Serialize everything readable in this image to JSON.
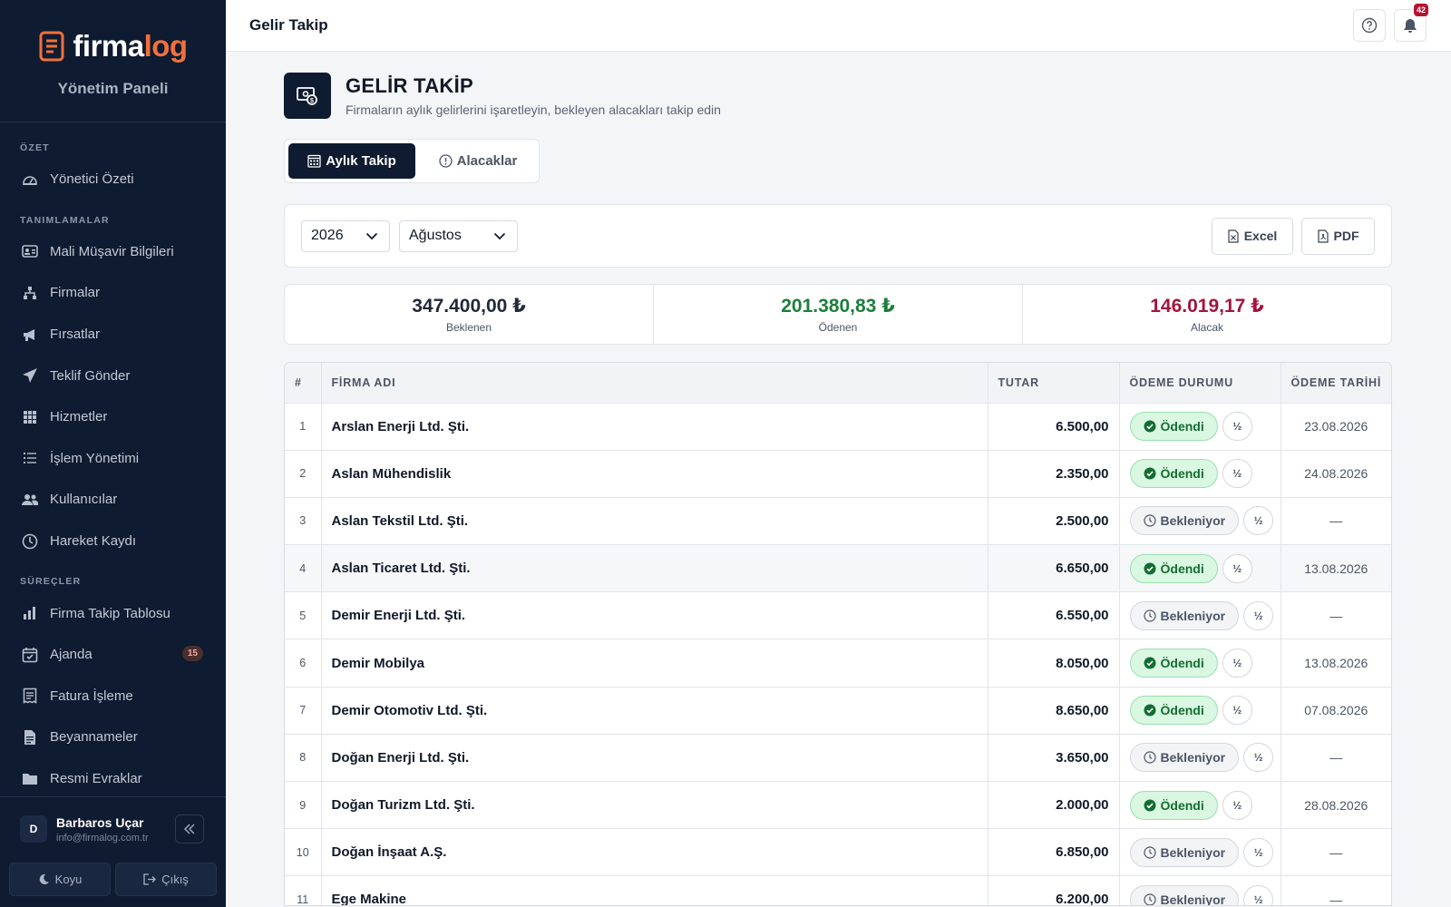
{
  "sidebar": {
    "brand": {
      "part1": "firma",
      "part2": "log",
      "subtitle": "Yönetim Paneli"
    },
    "sections": [
      {
        "title": "ÖZET",
        "items": [
          {
            "label": "Yönetici Özeti",
            "icon": "gauge-icon"
          }
        ]
      },
      {
        "title": "TANIMLAMALAR",
        "items": [
          {
            "label": "Mali Müşavir Bilgileri",
            "icon": "id-card-icon"
          },
          {
            "label": "Firmalar",
            "icon": "sitemap-icon"
          },
          {
            "label": "Fırsatlar",
            "icon": "megaphone-icon"
          },
          {
            "label": "Teklif Gönder",
            "icon": "paper-plane-icon"
          },
          {
            "label": "Hizmetler",
            "icon": "grid-icon"
          },
          {
            "label": "İşlem Yönetimi",
            "icon": "list-icon"
          },
          {
            "label": "Kullanıcılar",
            "icon": "users-icon"
          },
          {
            "label": "Hareket Kaydı",
            "icon": "clock-icon"
          }
        ]
      },
      {
        "title": "SÜREÇLER",
        "items": [
          {
            "label": "Firma Takip Tablosu",
            "icon": "bar-chart-icon"
          },
          {
            "label": "Ajanda",
            "icon": "calendar-check-icon",
            "badge": "15"
          },
          {
            "label": "Fatura İşleme",
            "icon": "receipt-icon"
          },
          {
            "label": "Beyannameler",
            "icon": "file-icon"
          },
          {
            "label": "Resmi Evraklar",
            "icon": "folder-icon"
          }
        ]
      }
    ],
    "user": {
      "initial": "D",
      "name": "Barbaros Uçar",
      "email": "info@firmalog.com.tr"
    },
    "actions": {
      "theme": "Koyu",
      "logout": "Çıkış"
    }
  },
  "topbar": {
    "title": "Gelir Takip",
    "notification_count": "42"
  },
  "header": {
    "title": "GELİR TAKİP",
    "subtitle": "Firmaların aylık gelirlerini işaretleyin, bekleyen alacakları takip edin"
  },
  "tabs": [
    {
      "label": "Aylık Takip"
    },
    {
      "label": "Alacaklar"
    }
  ],
  "filters": {
    "year": "2026",
    "month": "Ağustos",
    "excel": "Excel",
    "pdf": "PDF"
  },
  "stats": [
    {
      "value": "347.400,00 ₺",
      "label": "Beklenen",
      "color": "#1f2937"
    },
    {
      "value": "201.380,83 ₺",
      "label": "Ödenen",
      "color": "#1b7f3b"
    },
    {
      "value": "146.019,17 ₺",
      "label": "Alacak",
      "color": "#a3143c"
    }
  ],
  "table": {
    "columns": [
      "#",
      "FİRMA ADI",
      "TUTAR",
      "ÖDEME DURUMU",
      "ÖDEME TARİHİ"
    ],
    "half_label": "½",
    "rows": [
      {
        "no": "1",
        "name": "Arslan Enerji Ltd. Şti.",
        "amount": "6.500,00",
        "status": "Ödendi",
        "paid": true,
        "date": "23.08.2026"
      },
      {
        "no": "2",
        "name": "Aslan Mühendislik",
        "amount": "2.350,00",
        "status": "Ödendi",
        "paid": true,
        "date": "24.08.2026"
      },
      {
        "no": "3",
        "name": "Aslan Tekstil Ltd. Şti.",
        "amount": "2.500,00",
        "status": "Bekleniyor",
        "paid": false,
        "date": "—"
      },
      {
        "no": "4",
        "name": "Aslan Ticaret Ltd. Şti.",
        "amount": "6.650,00",
        "status": "Ödendi",
        "paid": true,
        "date": "13.08.2026",
        "highlight": true
      },
      {
        "no": "5",
        "name": "Demir Enerji Ltd. Şti.",
        "amount": "6.550,00",
        "status": "Bekleniyor",
        "paid": false,
        "date": "—"
      },
      {
        "no": "6",
        "name": "Demir Mobilya",
        "amount": "8.050,00",
        "status": "Ödendi",
        "paid": true,
        "date": "13.08.2026"
      },
      {
        "no": "7",
        "name": "Demir Otomotiv Ltd. Şti.",
        "amount": "8.650,00",
        "status": "Ödendi",
        "paid": true,
        "date": "07.08.2026"
      },
      {
        "no": "8",
        "name": "Doğan Enerji Ltd. Şti.",
        "amount": "3.650,00",
        "status": "Bekleniyor",
        "paid": false,
        "date": "—"
      },
      {
        "no": "9",
        "name": "Doğan Turizm Ltd. Şti.",
        "amount": "2.000,00",
        "status": "Ödendi",
        "paid": true,
        "date": "28.08.2026"
      },
      {
        "no": "10",
        "name": "Doğan İnşaat A.Ş.",
        "amount": "6.850,00",
        "status": "Bekleniyor",
        "paid": false,
        "date": "—"
      },
      {
        "no": "11",
        "name": "Ege Makine",
        "amount": "6.200,00",
        "status": "Bekleniyor",
        "paid": false,
        "date": "—"
      }
    ]
  }
}
